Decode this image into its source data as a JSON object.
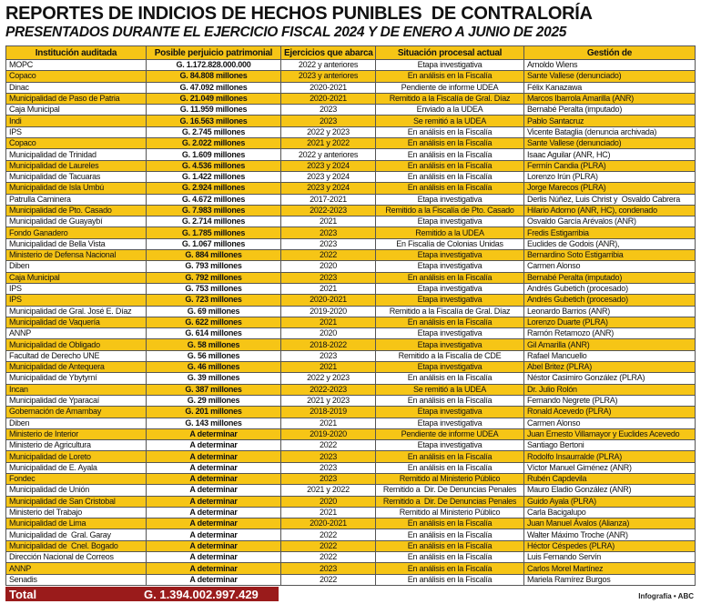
{
  "header": {
    "title": "REPORTES DE INDICIOS DE HECHOS PUNIBLES  DE CONTRALORÍA",
    "subtitle": "PRESENTADOS DURANTE EL EJERCICIO FISCAL 2024 Y DE ENERO A JUNIO DE 2025"
  },
  "table": {
    "columns": [
      "Institución auditada",
      "Posible perjuicio patrimonial",
      "Ejercicios que abarca",
      "Situación procesal actual",
      "Gestión de"
    ],
    "rows": [
      [
        "MOPC",
        "G. 1.172.828.000.000",
        "2022 y anteriores",
        "Etapa investigativa",
        "Arnoldo Wiens"
      ],
      [
        "Copaco",
        "G. 84.808 millones",
        "2023 y anteriores",
        "En análisis en la Fiscalía",
        "Sante Vallese (denunciado)"
      ],
      [
        "Dinac",
        "G. 47.092 millones",
        "2020-2021",
        "Pendiente de informe UDEA",
        "Félix Kanazawa"
      ],
      [
        "Municipalidad de Paso de Patria",
        "G. 21.049 millones",
        "2020-2021",
        "Remitido a la Fiscalía de Gral. Díaz",
        "Marcos Ibarrola Amarilla (ANR)"
      ],
      [
        "Caja Municipal",
        "G. 11.959 millones",
        "2023",
        "Enviado a la UDEA",
        "Bernabé Peralta (imputado)"
      ],
      [
        "Indi",
        "G. 16.563 millones",
        "2023",
        "Se remitió a la UDEA",
        "Pablo Santacruz"
      ],
      [
        "IPS",
        "G. 2.745 millones",
        "2022 y 2023",
        "En análisis en la Fiscalía",
        "Vicente Bataglia (denuncia archivada)"
      ],
      [
        "Copaco",
        "G. 2.022 millones",
        "2021 y 2022",
        "En análisis en la Fiscalía",
        "Sante Vallese (denunciado)"
      ],
      [
        "Municipalidad de Trinidad",
        "G. 1.609 millones",
        "2022 y anteriores",
        "En análisis en la Fiscalía",
        "Isaac Aguilar (ANR, HC)"
      ],
      [
        "Municipalidad de Laureles",
        "G. 4.536 millones",
        "2023 y 2024",
        "En análisis en la Fiscalía",
        "Fermín Candia (PLRA)"
      ],
      [
        "Municipalidad de Tacuaras",
        "G. 1.422 millones",
        "2023 y 2024",
        "En análisis en la Fiscalía",
        "Lorenzo Irún (PLRA)"
      ],
      [
        "Municipalidad de Isla Umbú",
        "G. 2.924 millones",
        "2023 y 2024",
        "En análisis en la Fiscalía",
        "Jorge Marecos (PLRA)"
      ],
      [
        "Patrulla Caminera",
        "G. 4.672 millones",
        "2017-2021",
        "Etapa investigativa",
        "Derlis Núñez, Luis Christ y  Osvaldo Cabrera"
      ],
      [
        "Municipalidad de Pto. Casado",
        "G. 7.983 millones",
        "2022-2023",
        "Remitido a la Fiscalía de Pto. Casado",
        "Hilario Adorno (ANR, HC), condenado"
      ],
      [
        "Municipalidad de Guayaybí",
        "G. 2.714 millones",
        "2021",
        "Etapa investigativa",
        "Osvaldo García Arévalos (ANR)"
      ],
      [
        "Fondo Ganadero",
        "G. 1.785 millones",
        "2023",
        "Remitido a la UDEA",
        "Fredis Estigarribia"
      ],
      [
        "Municipalidad de Bella Vista",
        "G. 1.067 millones",
        "2023",
        "En Fiscalía de Colonias Unidas",
        "Euclides de Godois (ANR),"
      ],
      [
        "Ministerio de Defensa Nacional",
        "G. 884 millones",
        "2022",
        "Etapa investigativa",
        "Bernardino Soto Estigarribia"
      ],
      [
        "Diben",
        "G. 793 millones",
        "2020",
        "Etapa investigativa",
        "Carmen Alonso"
      ],
      [
        "Caja Municipal",
        "G. 792 millones",
        "2023",
        "En análisis en la Fiscalía",
        "Bernabé Peralta (imputado)"
      ],
      [
        "IPS",
        "G. 753 millones",
        "2021",
        "Etapa investigativa",
        "Andrés Gubetich (procesado)"
      ],
      [
        "IPS",
        "G. 723 millones",
        "2020-2021",
        "Etapa investigativa",
        "Andrés Gubetich (procesado)"
      ],
      [
        "Municipalidad de Gral. José E. Díaz",
        "G. 69 millones",
        "2019-2020",
        "Remitido a la Fiscalía de Gral. Díaz",
        "Leonardo Barrios (ANR)"
      ],
      [
        "Municipalidad de Vaquería",
        "G. 622 millones",
        "2021",
        "En análisis en la Fiscalía",
        "Lorenzo Duarte (PLRA)"
      ],
      [
        "ANNP",
        "G. 614 millones",
        "2020",
        "Etapa investigativa",
        "Ramón Retamozo (ANR)"
      ],
      [
        "Municipalidad de Obligado",
        "G. 58 millones",
        "2018-2022",
        "Etapa investigativa",
        "Gil Amarilla (ANR)"
      ],
      [
        "Facultad de Derecho UNE",
        "G. 56 millones",
        "2023",
        "Remitido a la Fiscalía de CDE",
        "Rafael Mancuello"
      ],
      [
        "Municipalidad de Antequera",
        "G. 46 millones",
        "2021",
        "Etapa investigativa",
        "Abel Britez (PLRA)"
      ],
      [
        "Municipalidad de Ybytymí",
        "G. 39 millones",
        "2022 y 2023",
        "En análisis en la Fiscalía",
        "Néstor Casimiro González (PLRA)"
      ],
      [
        "Incan",
        "G. 387 millones",
        "2022-2023",
        "Se remitió a la UDEA",
        "Dr. Julio Rolón"
      ],
      [
        "Municipalidad de Yparacaí",
        "G. 29 millones",
        "2021 y 2023",
        "En análisis en la Fiscalía",
        "Fernando Negrete (PLRA)"
      ],
      [
        "Gobernación de Amambay",
        "G. 201 millones",
        "2018-2019",
        "Etapa investigativa",
        "Ronald Acevedo (PLRA)"
      ],
      [
        "Diben",
        "G. 143 millones",
        "2021",
        "Etapa investigativa",
        "Carmen Alonso"
      ],
      [
        "Ministerio de Interior",
        "A determinar",
        "2019-2020",
        "Pendiente de informe UDEA",
        "Juan Ernesto Villamayor y Euclides Acevedo"
      ],
      [
        "Ministerio de Agricultura",
        "A determinar",
        "2022",
        "Etapa investigativa",
        "Santiago Bertoni"
      ],
      [
        "Municipalidad de Loreto",
        "A determinar",
        "2023",
        "En análisis en la Fiscalía",
        "Rodolfo Insaurralde (PLRA)"
      ],
      [
        "Municipalidad de E. Ayala",
        "A determinar",
        "2023",
        "En análisis en la Fiscalía",
        "Víctor Manuel Giménez (ANR)"
      ],
      [
        "Fondec",
        "A determinar",
        "2023",
        "Remitido al Ministerio Público",
        "Rubén Capdevila"
      ],
      [
        "Municipalidad de Unión",
        "A determinar",
        "2021 y 2022",
        "Remitido a  Dir. De Denuncias Penales",
        "Mauro Eladio González (ANR)"
      ],
      [
        "Municipalidad de San Cristobal",
        "A determinar",
        "2020",
        "Remitido a  Dir. De Denuncias Penales",
        "Guido Ayala (PLRA)"
      ],
      [
        "Ministerio del Trabajo",
        "A determinar",
        "2021",
        "Remitido al Ministerio Público",
        "Carla Bacigalupo"
      ],
      [
        "Municipalidad de Lima",
        "A determinar",
        "2020-2021",
        "En análisis en la Fiscalía",
        "Juan Manuel Ávalos (Alianza)"
      ],
      [
        "Municipalidad de  Gral. Garay",
        "A determinar",
        "2022",
        "En análisis en la Fiscalía",
        "Walter Máximo Troche (ANR)"
      ],
      [
        "Municipalidad de  Cnel. Bogado",
        "A determinar",
        "2022",
        "En análisis en la Fiscalía",
        "Héctor Céspedes (PLRA)"
      ],
      [
        "Dirección Nacional de Correos",
        "A determinar",
        "2022",
        "En análisis en la Fiscalía",
        "Luis Fernando Servín"
      ],
      [
        "ANNP",
        "A determinar",
        "2023",
        "En análisis en la Fiscalía",
        "Carlos Morel Martínez"
      ],
      [
        "Senadis",
        "A determinar",
        "2022",
        "En análisis en la Fiscalía",
        "Mariela Ramírez Burgos"
      ]
    ],
    "total": {
      "label": "Total",
      "value": "G. 1.394.002.997.429"
    }
  },
  "footer": {
    "credit": "Infografía • ABC"
  }
}
